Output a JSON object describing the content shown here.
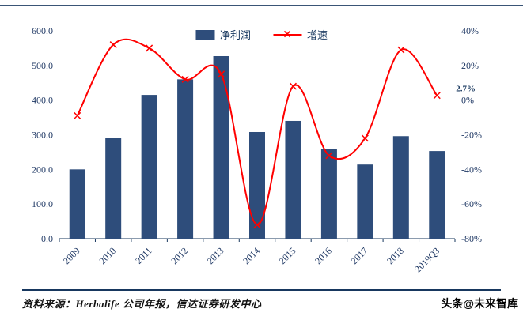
{
  "chart_data": {
    "type": "bar",
    "title": "",
    "categories": [
      "2009",
      "2010",
      "2011",
      "2012",
      "2013",
      "2014",
      "2015",
      "2016",
      "2017",
      "2018",
      "2019Q3"
    ],
    "series": [
      {
        "name": "净利润",
        "type": "bar",
        "axis": "left",
        "color": "#2E4D7B",
        "values": [
          200,
          292,
          415,
          460,
          527,
          308,
          340,
          260,
          214,
          296,
          253
        ]
      },
      {
        "name": "增速",
        "type": "line",
        "axis": "right",
        "color": "#FF0000",
        "values": [
          -9,
          32,
          30,
          12,
          15,
          -72,
          8,
          -32,
          -22,
          29,
          2.7
        ]
      }
    ],
    "left_axis": {
      "min": 0,
      "max": 600,
      "step": 100,
      "tick_labels": [
        "0.0",
        "100.0",
        "200.0",
        "300.0",
        "400.0",
        "500.0",
        "600.0"
      ]
    },
    "right_axis": {
      "min": -80,
      "max": 40,
      "step": 20,
      "tick_labels": [
        "-80%",
        "-60%",
        "-40%",
        "-20%",
        "0%",
        "20%",
        "40%"
      ]
    },
    "annotation": {
      "text": "2.7%",
      "point_index": 10
    },
    "legend_position": "top",
    "grid": false
  },
  "footer": {
    "source": "资料来源：Herbalife 公司年报，信达证券研发中心",
    "watermark": "头条@未来智库"
  }
}
